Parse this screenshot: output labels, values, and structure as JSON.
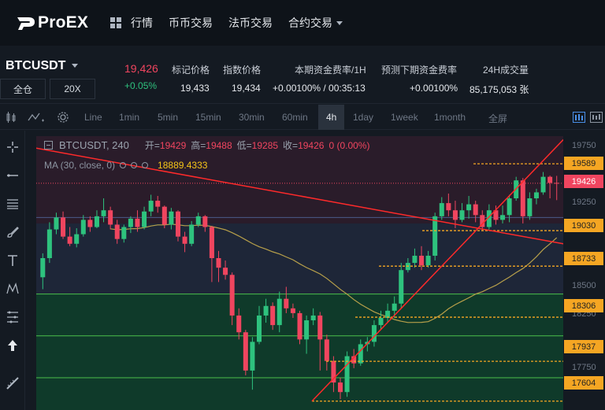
{
  "nav": {
    "logo": "ProEX",
    "menu": [
      "行情",
      "币币交易",
      "法币交易",
      "合约交易"
    ]
  },
  "market": {
    "symbol": "BTCUSDT",
    "price": "19,426",
    "change": "+0.05%",
    "buttons": [
      "全仓",
      "20X"
    ],
    "stats": [
      {
        "label": "标记价格",
        "value": "19,433"
      },
      {
        "label": "指数价格",
        "value": "19,434"
      },
      {
        "label": "本期资金费率/1H",
        "value": "+0.00100% / 00:35:13"
      },
      {
        "label": "预测下期资金费率",
        "value": "+0.00100%"
      },
      {
        "label": "24H成交量",
        "value": "85,175,053 张"
      }
    ]
  },
  "toolbar": {
    "intervals": [
      "Line",
      "1min",
      "5min",
      "15min",
      "30min",
      "60min",
      "4h",
      "1day",
      "1week",
      "1month"
    ],
    "active": "4h",
    "fullscreen": "全屏"
  },
  "legend": {
    "symbol": "BTCUSDT, 240",
    "open_k": "开=",
    "open": "19429",
    "high_k": "高=",
    "high": "19488",
    "low_k": "低=",
    "low": "19285",
    "close_k": "收=",
    "close": "19426",
    "change": "0 (0.00%)",
    "ma_label": "MA (30, close, 0)",
    "ma_value": "18889.4333"
  },
  "axis": {
    "ticks": [
      "19750",
      "19250",
      "18500",
      "18250",
      "17750"
    ],
    "levels": [
      "19589",
      "19426",
      "19030",
      "18733",
      "18306",
      "17937",
      "17604"
    ]
  },
  "colors": {
    "up": "#2ec27e",
    "down": "#f0455f",
    "level": "#f5a623",
    "ma": "#b8a04a",
    "trend": "#ff2a2a"
  },
  "chart_data": {
    "type": "candlestick",
    "title": "BTCUSDT, 240",
    "ylim": [
      17530,
      19820
    ],
    "series": [
      {
        "o": 18640,
        "c": 18800,
        "h": 18840,
        "l": 18540
      },
      {
        "o": 18800,
        "c": 19040,
        "h": 19100,
        "l": 18760
      },
      {
        "o": 19040,
        "c": 19140,
        "h": 19180,
        "l": 19000
      },
      {
        "o": 19140,
        "c": 18980,
        "h": 19190,
        "l": 18960
      },
      {
        "o": 18980,
        "c": 18920,
        "h": 19060,
        "l": 18900
      },
      {
        "o": 18920,
        "c": 19000,
        "h": 19050,
        "l": 18890
      },
      {
        "o": 19000,
        "c": 19120,
        "h": 19160,
        "l": 18980
      },
      {
        "o": 19120,
        "c": 19060,
        "h": 19150,
        "l": 19020
      },
      {
        "o": 19060,
        "c": 19150,
        "h": 19200,
        "l": 19050
      },
      {
        "o": 19150,
        "c": 19200,
        "h": 19300,
        "l": 19100
      },
      {
        "o": 19200,
        "c": 19080,
        "h": 19230,
        "l": 19040
      },
      {
        "o": 19080,
        "c": 18960,
        "h": 19120,
        "l": 18920
      },
      {
        "o": 18960,
        "c": 19060,
        "h": 19080,
        "l": 18930
      },
      {
        "o": 19060,
        "c": 19130,
        "h": 19150,
        "l": 19010
      },
      {
        "o": 19130,
        "c": 19060,
        "h": 19200,
        "l": 19020
      },
      {
        "o": 19060,
        "c": 19190,
        "h": 19230,
        "l": 19040
      },
      {
        "o": 19190,
        "c": 19280,
        "h": 19330,
        "l": 19150
      },
      {
        "o": 19280,
        "c": 19230,
        "h": 19320,
        "l": 19180
      },
      {
        "o": 19230,
        "c": 19080,
        "h": 19240,
        "l": 19050
      },
      {
        "o": 19080,
        "c": 19190,
        "h": 19220,
        "l": 19040
      },
      {
        "o": 19190,
        "c": 18980,
        "h": 19200,
        "l": 18940
      },
      {
        "o": 18980,
        "c": 18920,
        "h": 19020,
        "l": 18850
      },
      {
        "o": 18920,
        "c": 19080,
        "h": 19110,
        "l": 18900
      },
      {
        "o": 19080,
        "c": 19150,
        "h": 19180,
        "l": 19060
      },
      {
        "o": 19150,
        "c": 19060,
        "h": 19160,
        "l": 19020
      },
      {
        "o": 19060,
        "c": 18800,
        "h": 19070,
        "l": 18600
      },
      {
        "o": 18800,
        "c": 18720,
        "h": 18860,
        "l": 18600
      },
      {
        "o": 18720,
        "c": 18660,
        "h": 18780,
        "l": 18620
      },
      {
        "o": 18660,
        "c": 18320,
        "h": 18680,
        "l": 18240
      },
      {
        "o": 18320,
        "c": 18180,
        "h": 18380,
        "l": 18120
      },
      {
        "o": 18180,
        "c": 17860,
        "h": 18200,
        "l": 17820
      },
      {
        "o": 17860,
        "c": 18100,
        "h": 18140,
        "l": 17700
      },
      {
        "o": 18100,
        "c": 18320,
        "h": 18400,
        "l": 18080
      },
      {
        "o": 18320,
        "c": 18400,
        "h": 18460,
        "l": 18260
      },
      {
        "o": 18400,
        "c": 18240,
        "h": 18430,
        "l": 18200
      },
      {
        "o": 18240,
        "c": 18460,
        "h": 18520,
        "l": 18180
      },
      {
        "o": 18460,
        "c": 18380,
        "h": 18560,
        "l": 18340
      },
      {
        "o": 18380,
        "c": 18340,
        "h": 18420,
        "l": 18300
      },
      {
        "o": 18340,
        "c": 18120,
        "h": 18360,
        "l": 18080
      },
      {
        "o": 18120,
        "c": 18280,
        "h": 18320,
        "l": 18000
      },
      {
        "o": 18280,
        "c": 18320,
        "h": 18380,
        "l": 18240
      },
      {
        "o": 18320,
        "c": 18120,
        "h": 18350,
        "l": 17860
      },
      {
        "o": 18120,
        "c": 17940,
        "h": 18160,
        "l": 17860
      },
      {
        "o": 17940,
        "c": 17760,
        "h": 17980,
        "l": 17680
      },
      {
        "o": 17760,
        "c": 17680,
        "h": 17800,
        "l": 17620
      },
      {
        "o": 17680,
        "c": 17980,
        "h": 18020,
        "l": 17640
      },
      {
        "o": 17980,
        "c": 17920,
        "h": 18040,
        "l": 17880
      },
      {
        "o": 17920,
        "c": 18080,
        "h": 18120,
        "l": 17900
      },
      {
        "o": 18080,
        "c": 18100,
        "h": 18140,
        "l": 18020
      },
      {
        "o": 18100,
        "c": 18240,
        "h": 18280,
        "l": 18060
      },
      {
        "o": 18240,
        "c": 18300,
        "h": 18360,
        "l": 18200
      },
      {
        "o": 18300,
        "c": 18360,
        "h": 18420,
        "l": 18260
      },
      {
        "o": 18360,
        "c": 18420,
        "h": 18480,
        "l": 18300
      },
      {
        "o": 18420,
        "c": 18700,
        "h": 18760,
        "l": 18380
      },
      {
        "o": 18700,
        "c": 18760,
        "h": 18800,
        "l": 18680
      },
      {
        "o": 18760,
        "c": 18820,
        "h": 18880,
        "l": 18720
      },
      {
        "o": 18820,
        "c": 18740,
        "h": 18900,
        "l": 18700
      },
      {
        "o": 18740,
        "c": 18820,
        "h": 18860,
        "l": 18720
      },
      {
        "o": 18820,
        "c": 19150,
        "h": 19180,
        "l": 18780
      },
      {
        "o": 19150,
        "c": 19260,
        "h": 19310,
        "l": 19120
      },
      {
        "o": 19260,
        "c": 19200,
        "h": 19340,
        "l": 19150
      },
      {
        "o": 19200,
        "c": 19120,
        "h": 19280,
        "l": 19050
      },
      {
        "o": 19120,
        "c": 19200,
        "h": 19260,
        "l": 19100
      },
      {
        "o": 19200,
        "c": 19250,
        "h": 19320,
        "l": 19130
      },
      {
        "o": 19250,
        "c": 19160,
        "h": 19280,
        "l": 19100
      },
      {
        "o": 19160,
        "c": 19060,
        "h": 19200,
        "l": 19030
      },
      {
        "o": 19060,
        "c": 19200,
        "h": 19250,
        "l": 19040
      },
      {
        "o": 19200,
        "c": 19120,
        "h": 19240,
        "l": 19080
      },
      {
        "o": 19120,
        "c": 19160,
        "h": 19240,
        "l": 19090
      },
      {
        "o": 19160,
        "c": 19300,
        "h": 19330,
        "l": 19100
      },
      {
        "o": 19300,
        "c": 19450,
        "h": 19480,
        "l": 19280
      },
      {
        "o": 19450,
        "c": 19150,
        "h": 19470,
        "l": 19090
      },
      {
        "o": 19150,
        "c": 19300,
        "h": 19350,
        "l": 19120
      },
      {
        "o": 19300,
        "c": 19350,
        "h": 19380,
        "l": 19250
      },
      {
        "o": 19350,
        "c": 19480,
        "h": 19520,
        "l": 19330
      },
      {
        "o": 19480,
        "c": 19429,
        "h": 19490,
        "l": 19300
      },
      {
        "o": 19429,
        "c": 19426,
        "h": 19488,
        "l": 19285
      }
    ]
  }
}
